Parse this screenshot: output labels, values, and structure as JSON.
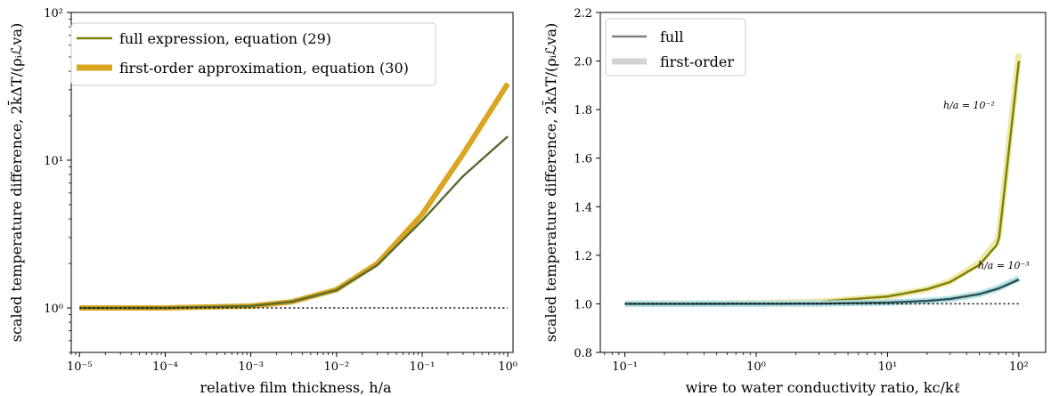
{
  "chart_data": [
    {
      "type": "line",
      "xlabel": "relative film thickness, h/a",
      "ylabel": "scaled temperature difference, 2k̄ΔT/(ρᵢℒva)",
      "xscale": "log",
      "yscale": "log",
      "xlim": [
        8e-06,
        1.15
      ],
      "ylim": [
        0.5,
        100
      ],
      "x_ticks": [
        {
          "value": 1e-05,
          "label": "10⁻⁵"
        },
        {
          "value": 0.0001,
          "label": "10⁻⁴"
        },
        {
          "value": 0.001,
          "label": "10⁻³"
        },
        {
          "value": 0.01,
          "label": "10⁻²"
        },
        {
          "value": 0.1,
          "label": "10⁻¹"
        },
        {
          "value": 1,
          "label": "10⁰"
        }
      ],
      "y_ticks": [
        {
          "value": 1,
          "label": "10⁰"
        },
        {
          "value": 10,
          "label": "10¹"
        },
        {
          "value": 100,
          "label": "10²"
        }
      ],
      "grid": false,
      "legend_position": "top-left",
      "series": [
        {
          "name": "first-order approximation, equation (30)",
          "color": "#daa520",
          "x": [
            1e-05,
            0.0001,
            0.001,
            0.003,
            0.01,
            0.03,
            0.1,
            0.3,
            1
          ],
          "y": [
            1.0,
            1.0003,
            1.03,
            1.1,
            1.33,
            2.0,
            4.3,
            11,
            33
          ]
        },
        {
          "name": "full expression, equation (29)",
          "color": "#556b2f",
          "x": [
            1e-05,
            0.0001,
            0.001,
            0.003,
            0.01,
            0.03,
            0.1,
            0.3,
            1
          ],
          "y": [
            1.0,
            1.0003,
            1.03,
            1.1,
            1.32,
            1.95,
            3.9,
            7.8,
            14.5
          ]
        },
        {
          "name": "",
          "style": "dotted",
          "color": "#000000",
          "x": [
            1e-05,
            1
          ],
          "y": [
            1,
            1
          ]
        }
      ]
    },
    {
      "type": "line",
      "xlabel": "wire to water conductivity ratio, kc/kℓ",
      "ylabel": "scaled temperature difference, 2k̄ΔT/(ρᵢℒva)",
      "xscale": "log",
      "yscale": "linear",
      "xlim": [
        0.065,
        160
      ],
      "ylim": [
        0.8,
        2.2
      ],
      "x_ticks": [
        {
          "value": 0.1,
          "label": "10⁻¹"
        },
        {
          "value": 1,
          "label": "10⁰"
        },
        {
          "value": 10,
          "label": "10¹"
        },
        {
          "value": 100,
          "label": "10²"
        }
      ],
      "y_ticks": [
        {
          "value": 0.8,
          "label": "0.8"
        },
        {
          "value": 1.0,
          "label": "1.0"
        },
        {
          "value": 1.2,
          "label": "1.2"
        },
        {
          "value": 1.4,
          "label": "1.4"
        },
        {
          "value": 1.6,
          "label": "1.6"
        },
        {
          "value": 1.8,
          "label": "1.8"
        },
        {
          "value": 2.0,
          "label": "2.0"
        },
        {
          "value": 2.2,
          "label": "2.2"
        }
      ],
      "grid": false,
      "legend_position": "top-left",
      "legend": [
        {
          "name": "full",
          "color": "#808080"
        },
        {
          "name": "first-order",
          "color": "#d3d3d3"
        }
      ],
      "annotations": [
        {
          "text": "h/a = 10⁻²",
          "x": 38,
          "y": 1.82
        },
        {
          "text": "h/a = 10⁻³",
          "x": 52,
          "y": 1.145
        }
      ],
      "series": [
        {
          "name": "h/a = 10⁻² first-order",
          "color": "#eee8aa",
          "x": [
            0.1,
            0.3,
            1,
            3,
            10,
            20,
            30,
            50,
            70,
            100
          ],
          "y": [
            1.0003,
            1.0009,
            1.003,
            1.009,
            1.03,
            1.06,
            1.093,
            1.168,
            1.265,
            2.03
          ]
        },
        {
          "name": "h/a = 10⁻² full",
          "color": "#808000",
          "x": [
            0.1,
            0.3,
            1,
            3,
            10,
            20,
            30,
            50,
            70,
            100
          ],
          "y": [
            1.0003,
            1.0009,
            1.003,
            1.009,
            1.03,
            1.06,
            1.09,
            1.16,
            1.25,
            2.0
          ]
        },
        {
          "name": "h/a = 10⁻³ first-order",
          "color": "#b0e0e6",
          "x": [
            0.1,
            1,
            3,
            10,
            20,
            30,
            50,
            70,
            100
          ],
          "y": [
            1.0,
            1.0003,
            1.001,
            1.005,
            1.012,
            1.02,
            1.04,
            1.065,
            1.105
          ]
        },
        {
          "name": "h/a = 10⁻³ full",
          "color": "#2f4f4f",
          "x": [
            0.1,
            1,
            3,
            10,
            20,
            30,
            50,
            70,
            100
          ],
          "y": [
            1.0,
            1.0003,
            1.001,
            1.005,
            1.012,
            1.02,
            1.04,
            1.063,
            1.1
          ]
        },
        {
          "name": "",
          "style": "dotted",
          "color": "#000000",
          "x": [
            0.1,
            100
          ],
          "y": [
            1,
            1
          ]
        }
      ]
    }
  ]
}
